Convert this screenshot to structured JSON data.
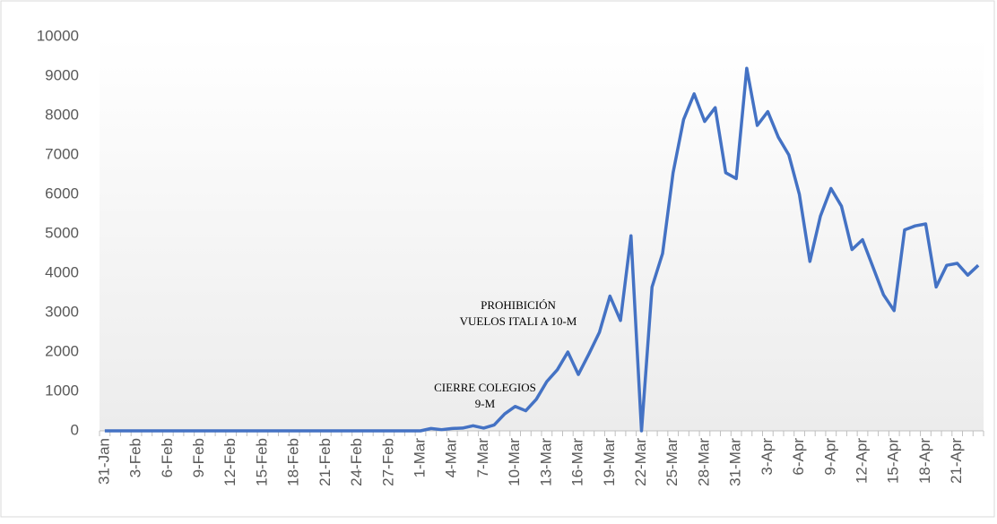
{
  "chart_data": {
    "type": "line",
    "categories": [
      "31-Jan",
      null,
      null,
      "3-Feb",
      null,
      null,
      "6-Feb",
      null,
      null,
      "9-Feb",
      null,
      null,
      "12-Feb",
      null,
      null,
      "15-Feb",
      null,
      null,
      "18-Feb",
      null,
      null,
      "21-Feb",
      null,
      null,
      "24-Feb",
      null,
      null,
      "27-Feb",
      null,
      null,
      "1-Mar",
      null,
      null,
      "4-Mar",
      null,
      null,
      "7-Mar",
      null,
      null,
      "10-Mar",
      null,
      null,
      "13-Mar",
      null,
      null,
      "16-Mar",
      null,
      null,
      "19-Mar",
      null,
      null,
      "22-Mar",
      null,
      null,
      "25-Mar",
      null,
      null,
      "28-Mar",
      null,
      null,
      "31-Mar",
      null,
      null,
      "3-Apr",
      null,
      null,
      "6-Apr",
      null,
      null,
      "9-Apr",
      null,
      null,
      "12-Apr",
      null,
      null,
      "15-Apr",
      null,
      null,
      "18-Apr",
      null,
      null,
      "21-Apr",
      null,
      null
    ],
    "values": [
      0,
      0,
      0,
      0,
      0,
      0,
      0,
      0,
      0,
      0,
      0,
      0,
      0,
      0,
      0,
      0,
      0,
      0,
      0,
      0,
      0,
      0,
      0,
      0,
      0,
      0,
      0,
      0,
      0,
      0,
      0,
      60,
      30,
      60,
      70,
      130,
      70,
      150,
      430,
      620,
      510,
      800,
      1250,
      1550,
      2000,
      1430,
      1950,
      2500,
      3420,
      2800,
      4950,
      0,
      3650,
      4500,
      6550,
      7900,
      8550,
      7850,
      8200,
      6550,
      6400,
      9200,
      7750,
      8100,
      7450,
      7000,
      6000,
      4300,
      5450,
      6150,
      5700,
      4600,
      4850,
      4150,
      3450,
      3050,
      5100,
      5200,
      5250,
      3650,
      4200,
      4250,
      3950,
      4200
    ],
    "color": "#4472c4",
    "ylim": [
      0,
      10000
    ],
    "yticks": [
      0,
      1000,
      2000,
      3000,
      4000,
      5000,
      6000,
      7000,
      8000,
      9000,
      10000
    ],
    "annotations": [
      {
        "lines": [
          "PROHIBICIÓN",
          "VUELOS ITALI A 10-M"
        ]
      },
      {
        "lines": [
          "CIERRE COLEGIOS",
          "9-M"
        ]
      }
    ]
  }
}
